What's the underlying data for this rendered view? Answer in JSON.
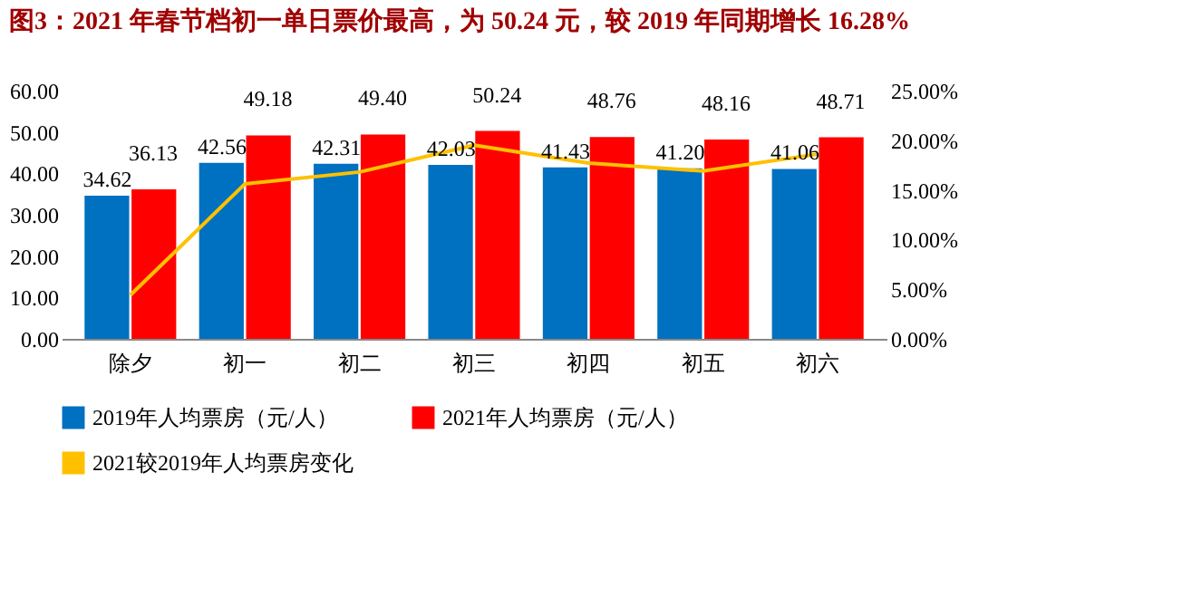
{
  "chart_data": {
    "type": "bar",
    "title": "图3：2021 年春节档初一单日票价最高，为 50.24 元，较 2019 年同期增长 16.28%",
    "categories": [
      "除夕",
      "初一",
      "初二",
      "初三",
      "初四",
      "初五",
      "初六"
    ],
    "series": [
      {
        "name": "2019年人均票房（元/人）",
        "color": "#0070c0",
        "values": [
          34.62,
          42.56,
          42.31,
          42.03,
          41.43,
          41.2,
          41.06
        ],
        "value_labels": [
          "34.62",
          "42.56",
          "42.31",
          "42.03",
          "41.43",
          "41.20",
          "41.06"
        ]
      },
      {
        "name": "2021年人均票房（元/人）",
        "color": "#ff0000",
        "values": [
          36.13,
          49.18,
          49.4,
          50.24,
          48.76,
          48.16,
          48.71
        ],
        "value_labels": [
          "36.13",
          "49.18",
          "49.40",
          "50.24",
          "48.76",
          "48.16",
          "48.71"
        ]
      },
      {
        "name": "2021较2019年人均票房变化",
        "type": "line",
        "axis": "y2",
        "color": "#ffc000",
        "values": [
          4.4,
          15.6,
          16.8,
          19.5,
          17.7,
          16.9,
          18.6
        ]
      }
    ],
    "ylim": [
      0,
      60
    ],
    "yticks": [
      {
        "value": 0,
        "label": "0.00"
      },
      {
        "value": 10,
        "label": "10.00"
      },
      {
        "value": 20,
        "label": "20.00"
      },
      {
        "value": 30,
        "label": "30.00"
      },
      {
        "value": 40,
        "label": "40.00"
      },
      {
        "value": 50,
        "label": "50.00"
      },
      {
        "value": 60,
        "label": "60.00"
      }
    ],
    "y2lim": [
      0,
      25
    ],
    "y2ticks": [
      {
        "value": 0,
        "label": "0.00%"
      },
      {
        "value": 5,
        "label": "5.00%"
      },
      {
        "value": 10,
        "label": "10.00%"
      },
      {
        "value": 15,
        "label": "15.00%"
      },
      {
        "value": 20,
        "label": "20.00%"
      },
      {
        "value": 25,
        "label": "25.00%"
      }
    ],
    "legend": "bottom"
  }
}
